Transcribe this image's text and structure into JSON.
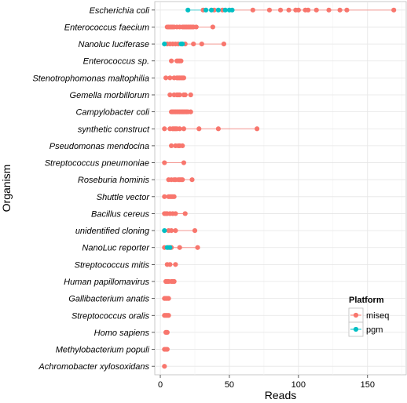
{
  "chart_data": {
    "type": "scatter",
    "title": "",
    "xlabel": "Reads",
    "ylabel": "Organism",
    "xlim": [
      -4,
      178
    ],
    "xticks": [
      0,
      50,
      100,
      150
    ],
    "grid": true,
    "legend": {
      "title": "Platform",
      "placement": "bottom-right",
      "entries": [
        {
          "name": "miseq",
          "color": "#F8766D"
        },
        {
          "name": "pgm",
          "color": "#00BFC4"
        }
      ]
    },
    "categories": [
      "Escherichia coli",
      "Enterococcus faecium",
      "Nanoluc luciferase",
      "Enterococcus sp.",
      "Stenotrophomonas maltophilia",
      "Gemella morbillorum",
      "Campylobacter coli",
      "synthetic construct",
      "Pseudomonas mendocina",
      "Streptococcus pneumoniae",
      "Roseburia hominis",
      "Shuttle vector",
      "Bacillus cereus",
      "unidentified cloning",
      "NanoLuc reporter",
      "Streptococcus mitis",
      "Human papillomavirus",
      "Gallibacterium anatis",
      "Streptococcus oralis",
      "Homo sapiens",
      "Methylobacterium populi",
      "Achromobacter xylosoxidans"
    ],
    "series": [
      {
        "name": "miseq",
        "color": "#F8766D",
        "values": [
          [
            31,
            39,
            45,
            67,
            79,
            87,
            93,
            98,
            100,
            105,
            107,
            113,
            122,
            130,
            135,
            169
          ],
          [
            5,
            6,
            7,
            8,
            9,
            10,
            12,
            14,
            16,
            17,
            18,
            19,
            20,
            21,
            22,
            23,
            24,
            26,
            38
          ],
          [
            5,
            7,
            9,
            11,
            13,
            18,
            24,
            30,
            46
          ],
          [
            8,
            12,
            13,
            14,
            15
          ],
          [
            4,
            7,
            10,
            12,
            13,
            14,
            15,
            16,
            17
          ],
          [
            7,
            10,
            12,
            13,
            14,
            17,
            18,
            22
          ],
          [
            8,
            9,
            10,
            11,
            12,
            13,
            14,
            15,
            16,
            17,
            18,
            19,
            20,
            22
          ],
          [
            3,
            7,
            9,
            10,
            11,
            12,
            14,
            17,
            28,
            42,
            70
          ],
          [
            8,
            11,
            13,
            14,
            16
          ],
          [
            3,
            17
          ],
          [
            6,
            8,
            10,
            11,
            13,
            14,
            15,
            16,
            23
          ],
          [
            3,
            6,
            7,
            8,
            9,
            10
          ],
          [
            3,
            4,
            5,
            7,
            9,
            11,
            18
          ],
          [
            6,
            8,
            11,
            25
          ],
          [
            3,
            6,
            8,
            14,
            27
          ],
          [
            5,
            7,
            11
          ],
          [
            4,
            5,
            6,
            8,
            9,
            10
          ],
          [
            3,
            4,
            5,
            6
          ],
          [
            3,
            4,
            5,
            6
          ],
          [
            4,
            5
          ],
          [
            3,
            4,
            5
          ],
          [
            3
          ]
        ]
      },
      {
        "name": "pgm",
        "color": "#00BFC4",
        "values": [
          [
            20,
            33,
            37,
            42,
            47,
            50,
            52
          ],
          [],
          [
            3,
            15,
            16
          ],
          [],
          [],
          [],
          [],
          [],
          [],
          [],
          [],
          [],
          [],
          [
            3
          ],
          [
            5,
            7
          ],
          [],
          [],
          [],
          [],
          [],
          [],
          []
        ]
      }
    ]
  }
}
